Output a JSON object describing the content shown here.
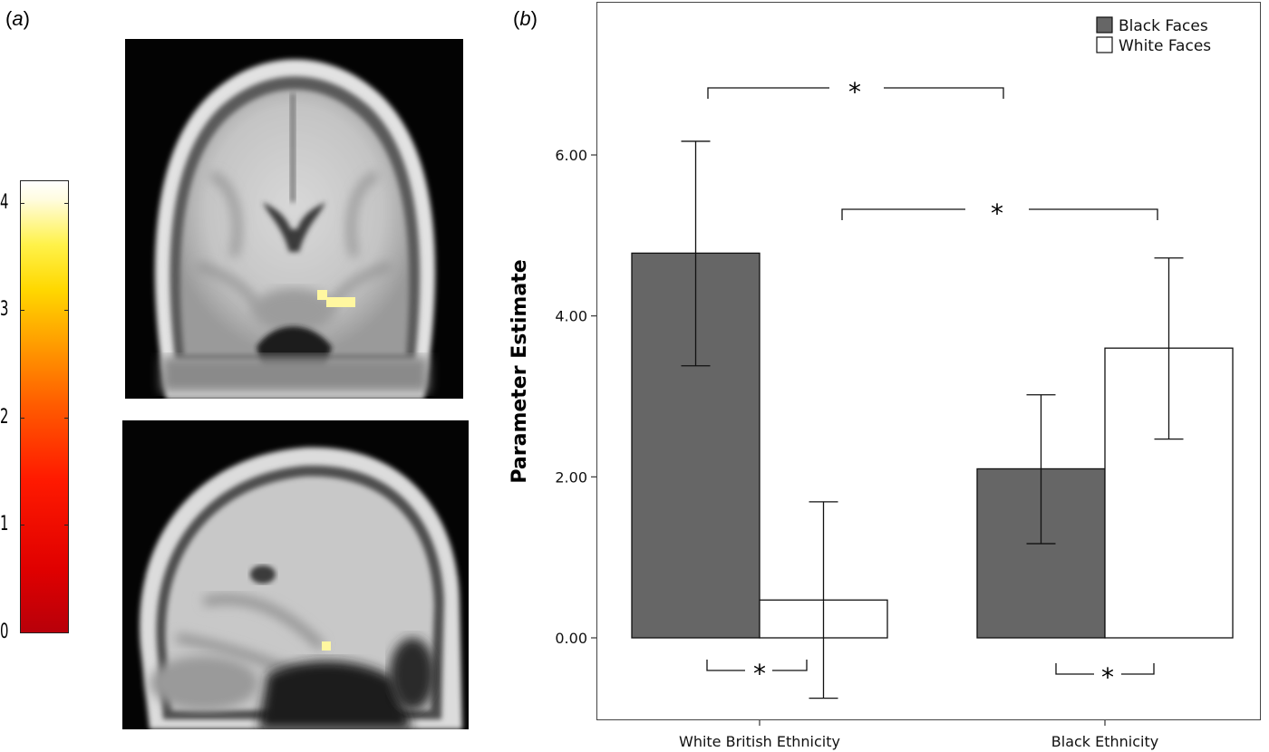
{
  "panels": {
    "a": "a",
    "b": "b"
  },
  "colorbar": {
    "ticks": [
      "0",
      "1",
      "2",
      "3",
      "4"
    ],
    "min": 0,
    "max": 4.2
  },
  "chart_data": {
    "type": "bar",
    "categories": [
      "White British Ethnicity",
      "Black Ethnicity"
    ],
    "ylabel": "Parameter Estimate",
    "ylim": [
      -1.0,
      7.9
    ],
    "yticks": [
      "0.00",
      "2.00",
      "4.00",
      "6.00"
    ],
    "grid": false,
    "legend_placement": "top-right",
    "series": [
      {
        "name": "Black Faces",
        "color": "#666666",
        "values": [
          4.78,
          2.1
        ],
        "err_low": [
          3.38,
          1.17
        ],
        "err_high": [
          6.17,
          3.02
        ]
      },
      {
        "name": "White Faces",
        "color": "#ffffff",
        "values": [
          0.47,
          3.6
        ],
        "err_low": [
          -0.75,
          2.47
        ],
        "err_high": [
          1.69,
          4.72
        ]
      }
    ],
    "annotations": [
      "*",
      "*",
      "*",
      "*"
    ]
  }
}
